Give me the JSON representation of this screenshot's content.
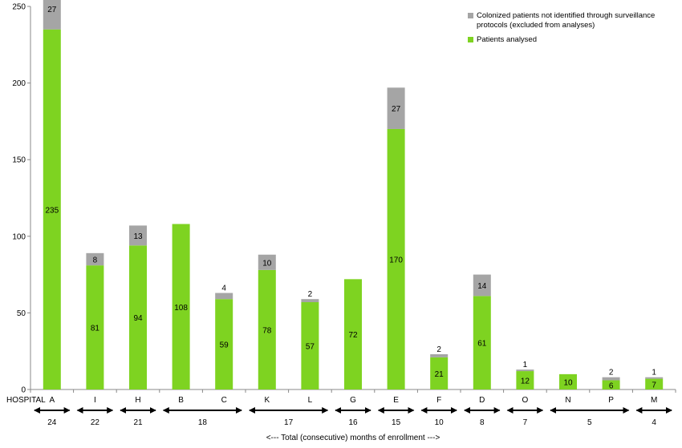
{
  "chart_data": {
    "type": "bar",
    "stacked": true,
    "xlabel": "<--- Total  (consecutive) months of enrollment --->",
    "row_label": "HOSPITAL",
    "ylim": [
      0,
      250
    ],
    "yticks": [
      0,
      50,
      100,
      150,
      200,
      250
    ],
    "grid": false,
    "legend_position": "top-right",
    "categories": [
      "A",
      "I",
      "H",
      "B",
      "C",
      "K",
      "L",
      "G",
      "E",
      "F",
      "D",
      "O",
      "N",
      "P",
      "M"
    ],
    "series": [
      {
        "name": "Patients analysed",
        "color": "#7ED321",
        "values": [
          235,
          81,
          94,
          108,
          59,
          78,
          57,
          72,
          170,
          21,
          61,
          12,
          10,
          6,
          7
        ],
        "labels": [
          "235",
          "81",
          "94",
          "108",
          "59",
          "78",
          "57",
          "72",
          "170",
          "21",
          "61",
          "12",
          "10",
          "6",
          "7"
        ]
      },
      {
        "name": "Colonized patients not identified through surveillance protocols (excluded from analyses)",
        "color": "#A5A5A5",
        "values": [
          27,
          8,
          13,
          0,
          4,
          10,
          2,
          0,
          27,
          2,
          14,
          1,
          0,
          2,
          1
        ],
        "labels": [
          "27",
          "8",
          "13",
          "",
          "4",
          "10",
          "2",
          "",
          "27",
          "2",
          "14",
          "1",
          "",
          "2",
          "1"
        ]
      }
    ],
    "legend_order": [
      1,
      0
    ],
    "enrollment_groups": [
      {
        "from": 0,
        "to": 0,
        "months": "24"
      },
      {
        "from": 1,
        "to": 1,
        "months": "22"
      },
      {
        "from": 2,
        "to": 2,
        "months": "21"
      },
      {
        "from": 3,
        "to": 4,
        "months": "18"
      },
      {
        "from": 5,
        "to": 6,
        "months": "17"
      },
      {
        "from": 7,
        "to": 7,
        "months": "16"
      },
      {
        "from": 8,
        "to": 8,
        "months": "15"
      },
      {
        "from": 9,
        "to": 9,
        "months": "10"
      },
      {
        "from": 10,
        "to": 10,
        "months": "8"
      },
      {
        "from": 11,
        "to": 11,
        "months": "7"
      },
      {
        "from": 12,
        "to": 13,
        "months": "5"
      },
      {
        "from": 14,
        "to": 14,
        "months": "4"
      }
    ]
  }
}
